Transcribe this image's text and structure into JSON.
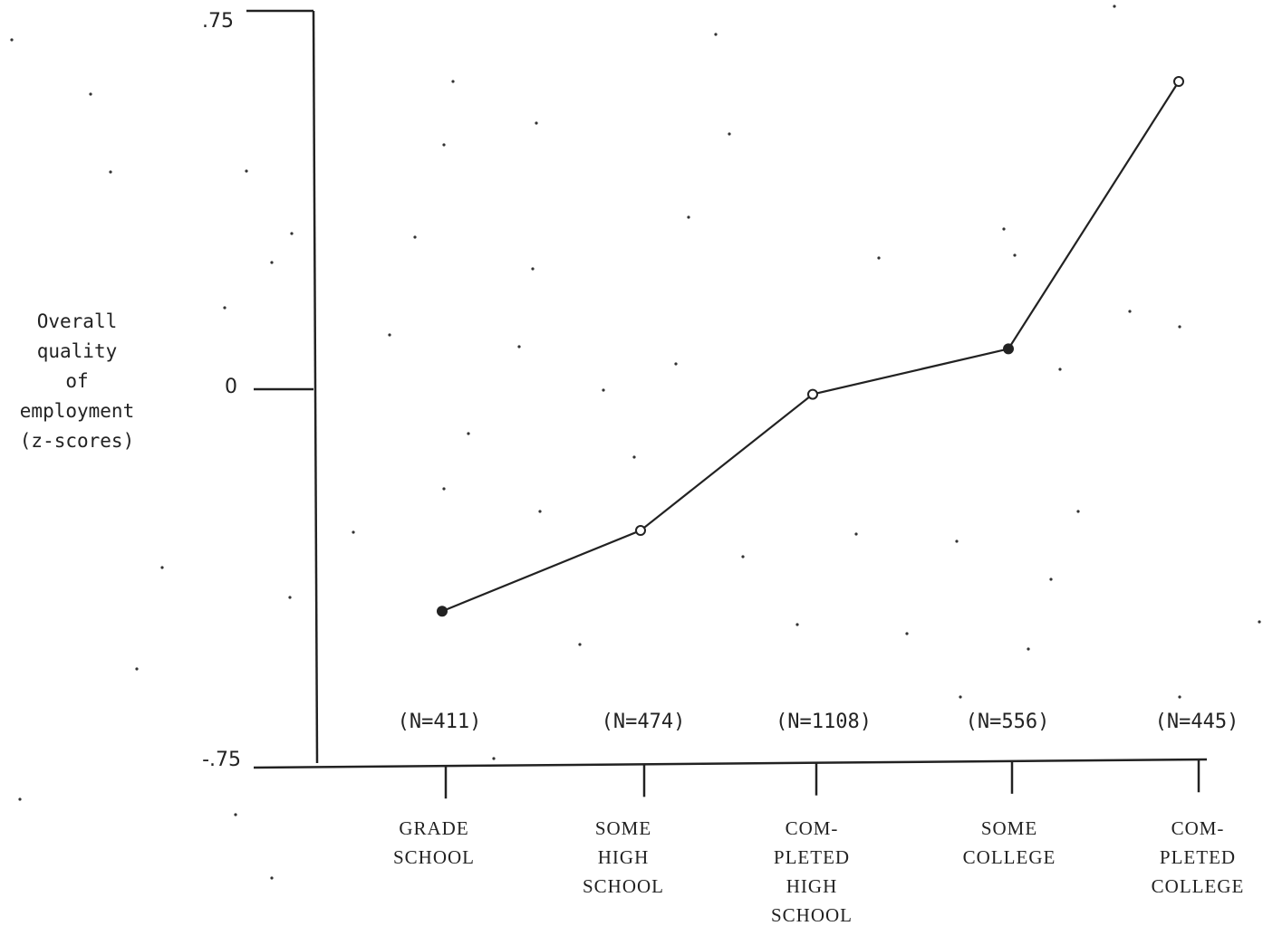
{
  "chart_data": {
    "type": "line",
    "ylabel_lines": [
      "Overall",
      "quality",
      "of",
      "employment",
      "(z-scores)"
    ],
    "ylim": [
      -0.75,
      0.75
    ],
    "y_ticks": [
      ".75",
      "0",
      "-.75"
    ],
    "categories": [
      {
        "label_lines": [
          "GRADE",
          "SCHOOL"
        ],
        "n": "(N=411)"
      },
      {
        "label_lines": [
          "SOME",
          "HIGH",
          "SCHOOL"
        ],
        "n": "(N=474)"
      },
      {
        "label_lines": [
          "COM-",
          "PLETED",
          "HIGH",
          "SCHOOL"
        ],
        "n": "(N=1108)"
      },
      {
        "label_lines": [
          "SOME",
          "COLLEGE"
        ],
        "n": "(N=556)"
      },
      {
        "label_lines": [
          "COM-",
          "PLETED",
          "COLLEGE"
        ],
        "n": "(N=445)"
      }
    ],
    "series": [
      {
        "values": [
          -0.44,
          -0.28,
          -0.01,
          0.08,
          0.61
        ]
      }
    ],
    "grid": false,
    "legend": "none"
  }
}
